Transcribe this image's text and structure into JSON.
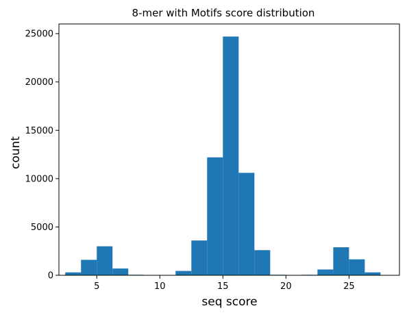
{
  "chart_data": {
    "type": "bar",
    "title": "8-mer with Motifs score distribution",
    "xlabel": "seq score",
    "ylabel": "count",
    "xlim": [
      2,
      29
    ],
    "ylim": [
      0,
      26000
    ],
    "xticks": [
      5,
      10,
      15,
      20,
      25
    ],
    "yticks": [
      0,
      5000,
      10000,
      15000,
      20000,
      25000
    ],
    "bar_color": "#1f77b4",
    "grid": false,
    "bins": [
      {
        "x0": 2.5,
        "x1": 3.75,
        "value": 300
      },
      {
        "x0": 3.75,
        "x1": 5.0,
        "value": 1600
      },
      {
        "x0": 5.0,
        "x1": 6.25,
        "value": 3000
      },
      {
        "x0": 6.25,
        "x1": 7.5,
        "value": 700
      },
      {
        "x0": 7.5,
        "x1": 8.75,
        "value": 50
      },
      {
        "x0": 8.75,
        "x1": 10.0,
        "value": 0
      },
      {
        "x0": 10.0,
        "x1": 11.25,
        "value": 0
      },
      {
        "x0": 11.25,
        "x1": 12.5,
        "value": 450
      },
      {
        "x0": 12.5,
        "x1": 13.75,
        "value": 3600
      },
      {
        "x0": 13.75,
        "x1": 15.0,
        "value": 12200
      },
      {
        "x0": 15.0,
        "x1": 16.25,
        "value": 24700
      },
      {
        "x0": 16.25,
        "x1": 17.5,
        "value": 10600
      },
      {
        "x0": 17.5,
        "x1": 18.75,
        "value": 2600
      },
      {
        "x0": 18.75,
        "x1": 20.0,
        "value": 50
      },
      {
        "x0": 20.0,
        "x1": 21.25,
        "value": 0
      },
      {
        "x0": 21.25,
        "x1": 22.5,
        "value": 50
      },
      {
        "x0": 22.5,
        "x1": 23.75,
        "value": 600
      },
      {
        "x0": 23.75,
        "x1": 25.0,
        "value": 2900
      },
      {
        "x0": 25.0,
        "x1": 26.25,
        "value": 1650
      },
      {
        "x0": 26.25,
        "x1": 27.5,
        "value": 300
      }
    ]
  }
}
